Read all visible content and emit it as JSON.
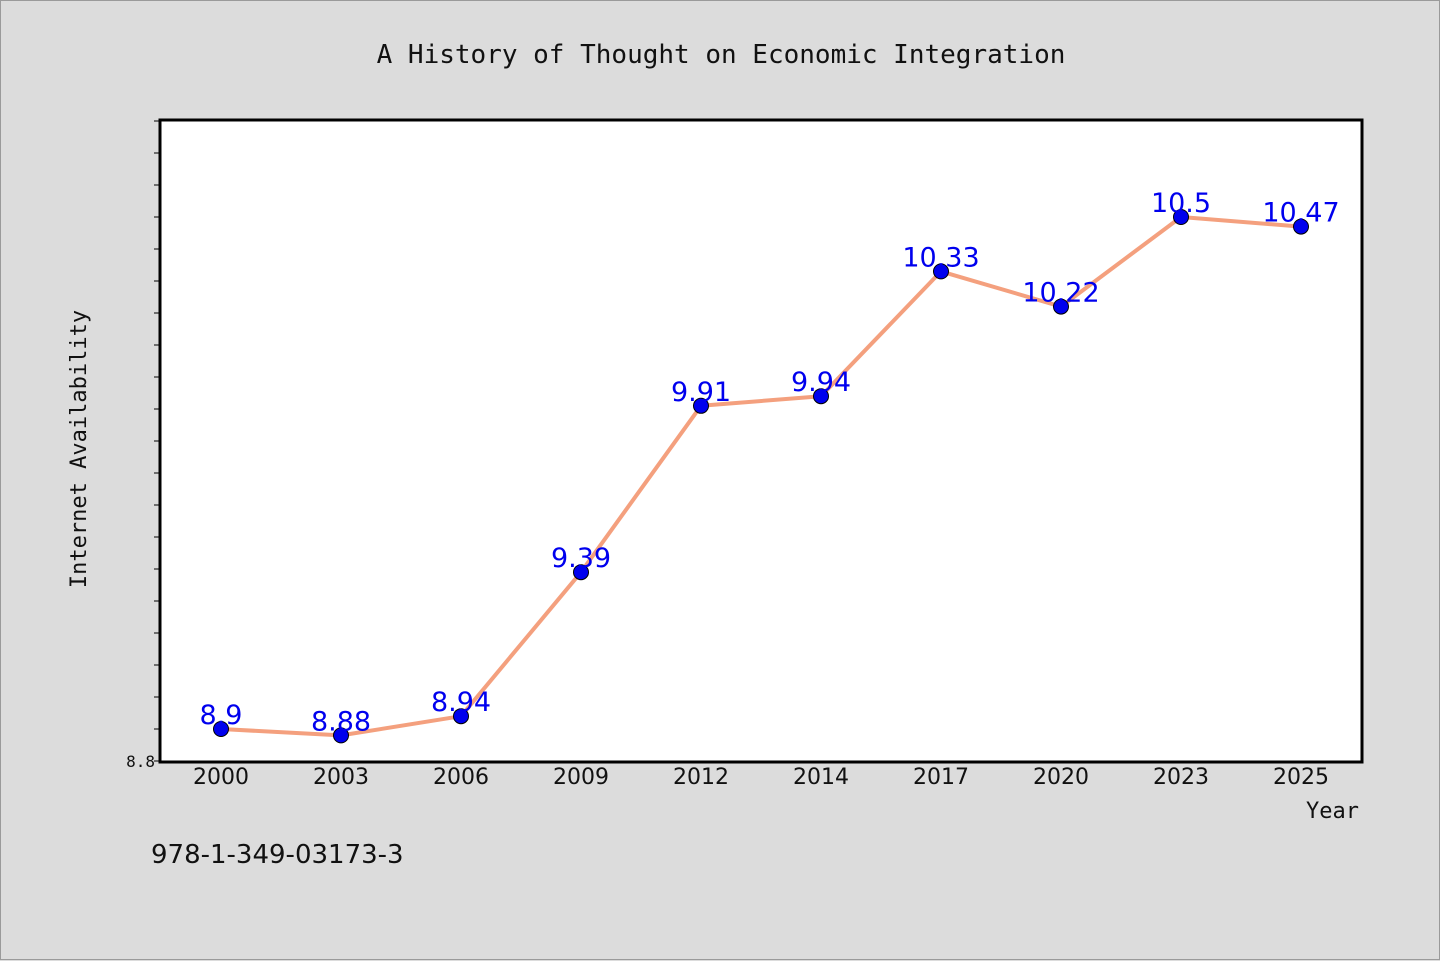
{
  "chart_data": {
    "type": "line",
    "title": "A History of Thought on Economic Integration",
    "xlabel": "Year",
    "ylabel": "Internet Availability",
    "categories": [
      "2000",
      "2003",
      "2006",
      "2009",
      "2012",
      "2014",
      "2017",
      "2020",
      "2023",
      "2025"
    ],
    "series": [
      {
        "values": [
          8.9,
          8.88,
          8.94,
          9.39,
          9.91,
          9.94,
          10.33,
          10.22,
          10.5,
          10.47
        ],
        "labels": [
          "8.9",
          "8.88",
          "8.94",
          "9.39",
          "9.91",
          "9.94",
          "10.33",
          "10.22",
          "10.5",
          "10.47"
        ],
        "line_color": "#f4a07e",
        "marker_color": "#0000ee",
        "label_color": "#0000ee"
      }
    ],
    "ylim": [
      8.8,
      10.8
    ],
    "y_tick_labels": [
      "8.8"
    ],
    "grid": false,
    "legend": "none"
  },
  "footer": {
    "code": "978-1-349-03173-3"
  },
  "colors": {
    "background": "#dcdcdc",
    "plot_background": "#ffffff",
    "axis": "#000000"
  }
}
